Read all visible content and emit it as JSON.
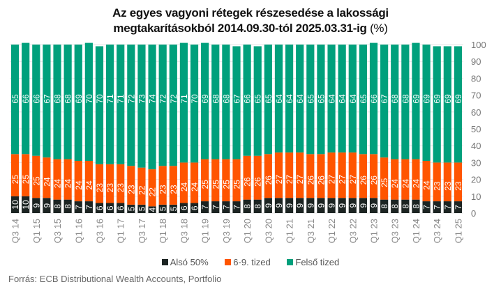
{
  "chart_data": {
    "type": "bar",
    "stacked": true,
    "title_line1": "Az egyes vagyoni rétegek részesedése a lakossági",
    "title_line2": "megtakarításokból 2014.09.30-tól  2025.03.31-ig",
    "title_unit": "(%)",
    "xlabel": "",
    "ylabel": "",
    "ylim": [
      0,
      100
    ],
    "yticks": [
      0,
      10,
      20,
      30,
      40,
      50,
      60,
      70,
      80,
      90,
      100
    ],
    "y_axis_side": "right",
    "grid": true,
    "legend_position": "bottom",
    "categories": [
      "Q3 14",
      "Q4 14",
      "Q1 15",
      "Q2 15",
      "Q3 15",
      "Q4 15",
      "Q1 16",
      "Q2 16",
      "Q3 16",
      "Q4 16",
      "Q1 17",
      "Q2 17",
      "Q3 17",
      "Q4 17",
      "Q1 18",
      "Q2 18",
      "Q3 18",
      "Q4 18",
      "Q1 19",
      "Q2 19",
      "Q3 19",
      "Q4 19",
      "Q1 20",
      "Q2 20",
      "Q3 20",
      "Q4 20",
      "Q1 21",
      "Q2 21",
      "Q3 21",
      "Q4 21",
      "Q1 22",
      "Q2 22",
      "Q3 22",
      "Q4 22",
      "Q1 23",
      "Q2 23",
      "Q3 23",
      "Q4 23",
      "Q1 24",
      "Q2 24",
      "Q3 24",
      "Q4 24",
      "Q1 25"
    ],
    "tick_labels_shown": [
      "Q3 14",
      "Q1 15",
      "Q3 15",
      "Q1 16",
      "Q3 16",
      "Q1 17",
      "Q3 17",
      "Q1 18",
      "Q3 18",
      "Q1 19",
      "Q3 19",
      "Q1 20",
      "Q3 20",
      "Q1 21",
      "Q3 21",
      "Q1 22",
      "Q3 22",
      "Q1 23",
      "Q3 23",
      "Q1 24",
      "Q3 24",
      "Q1 25"
    ],
    "series": [
      {
        "name": "Alsó 50%",
        "color": "#1c2422",
        "values": [
          10,
          10,
          9,
          9,
          8,
          8,
          7,
          7,
          6,
          6,
          6,
          5,
          5,
          4,
          5,
          5,
          6,
          6,
          7,
          7,
          7,
          7,
          8,
          8,
          9,
          9,
          9,
          9,
          9,
          9,
          9,
          9,
          9,
          9,
          9,
          8,
          8,
          8,
          8,
          7,
          7,
          7,
          7
        ]
      },
      {
        "name": "6-9. tized",
        "color": "#ff5500",
        "values": [
          25,
          25,
          25,
          24,
          24,
          24,
          24,
          24,
          23,
          23,
          23,
          23,
          22,
          22,
          23,
          23,
          24,
          24,
          25,
          25,
          25,
          25,
          26,
          26,
          26,
          27,
          27,
          27,
          26,
          26,
          27,
          27,
          27,
          26,
          26,
          25,
          24,
          24,
          24,
          24,
          23,
          23,
          23
        ]
      },
      {
        "name": "Felső tized",
        "color": "#00a07c",
        "values": [
          65,
          66,
          66,
          67,
          68,
          68,
          69,
          70,
          70,
          71,
          71,
          72,
          73,
          74,
          72,
          72,
          71,
          70,
          69,
          68,
          68,
          67,
          66,
          65,
          65,
          64,
          64,
          64,
          65,
          65,
          64,
          64,
          64,
          65,
          66,
          67,
          68,
          68,
          69,
          69,
          69,
          69,
          69
        ]
      }
    ]
  },
  "legend": {
    "items": [
      {
        "label": "Alsó 50%",
        "color": "#1c2422"
      },
      {
        "label": "6-9. tized",
        "color": "#ff5500"
      },
      {
        "label": "Felső tized",
        "color": "#00a07c"
      }
    ]
  },
  "source": "Forrás: ECB Distributional Wealth Accounts, Portfolio"
}
